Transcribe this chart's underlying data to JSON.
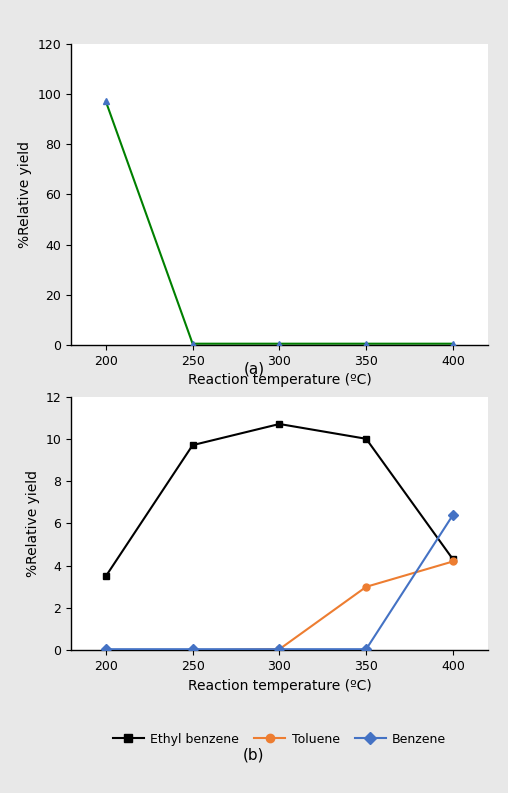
{
  "temperatures": [
    200,
    250,
    300,
    350,
    400
  ],
  "chart_a": {
    "green_line": [
      97,
      0.5,
      0.5,
      0.5,
      0.5
    ],
    "blue_markers_y": [
      97,
      0.5,
      0.5,
      0.5,
      0.5
    ],
    "ylim": [
      0,
      120
    ],
    "yticks": [
      0,
      20,
      40,
      60,
      80,
      100,
      120
    ],
    "ylabel": "%Relative yield",
    "xlabel": "Reaction temperature (ºC)",
    "label_a": "(a)",
    "green_color": "#008000",
    "blue_color": "#4472c4"
  },
  "chart_b": {
    "ethyl_benzene": [
      3.5,
      9.7,
      10.7,
      10.0,
      4.3
    ],
    "toluene": [
      0.0,
      0.0,
      0.05,
      3.0,
      4.2
    ],
    "benzene": [
      0.05,
      0.05,
      0.05,
      0.05,
      6.4
    ],
    "ylim": [
      0,
      12
    ],
    "yticks": [
      0,
      2,
      4,
      6,
      8,
      10,
      12
    ],
    "ylabel": "%Relative yield",
    "xlabel": "Reaction temperature (ºC)",
    "label_b": "(b)",
    "ethyl_benzene_color": "#000000",
    "toluene_color": "#ed7d31",
    "benzene_color": "#4472c4",
    "legend_labels": [
      "Ethyl benzene",
      "Toluene",
      "Benzene"
    ]
  },
  "fig_bg_color": "#e8e8e8",
  "plot_bg_color": "#ffffff"
}
